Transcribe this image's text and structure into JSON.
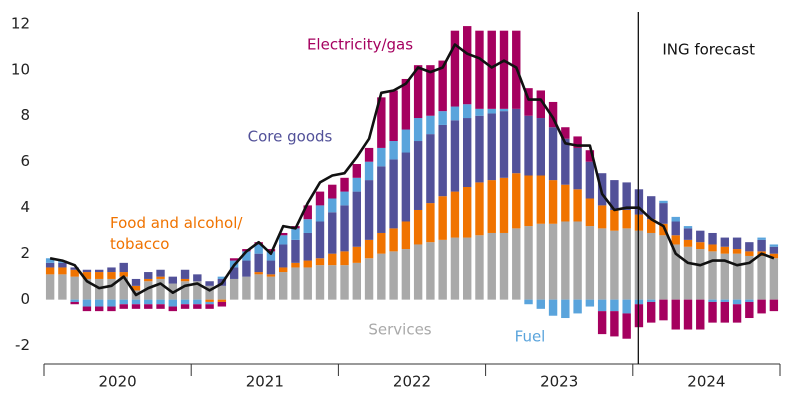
{
  "chart_data": {
    "type": "stacked-bar-line",
    "categories": [
      null,
      null,
      null,
      null,
      null,
      null,
      null,
      null,
      null,
      null,
      null,
      null,
      null,
      null,
      null,
      null,
      null,
      null,
      null,
      null,
      null,
      null,
      null,
      null,
      null,
      null,
      null,
      null,
      null,
      null,
      null,
      null,
      null,
      null,
      null,
      null,
      null,
      null,
      null,
      null,
      null,
      null,
      null,
      null,
      null,
      null,
      null,
      null,
      null,
      null,
      null,
      null,
      null,
      null,
      null,
      null,
      null,
      null,
      null,
      null
    ],
    "groups": [
      {
        "label": "2020",
        "count": 12
      },
      {
        "label": "2021",
        "count": 12
      },
      {
        "label": "2022",
        "count": 12
      },
      {
        "label": "2023",
        "count": 12
      },
      {
        "label": "2024",
        "count": 12
      }
    ],
    "series": [
      {
        "name": "Services",
        "color": "#a9a9a9",
        "values": [
          1.1,
          1.1,
          1.0,
          0.9,
          0.9,
          0.9,
          1.0,
          0.4,
          0.8,
          0.9,
          0.7,
          0.8,
          0.8,
          0.6,
          0.6,
          0.9,
          1.0,
          1.1,
          1.0,
          1.2,
          1.4,
          1.4,
          1.5,
          1.5,
          1.5,
          1.6,
          1.8,
          2.0,
          2.1,
          2.2,
          2.4,
          2.5,
          2.6,
          2.7,
          2.7,
          2.8,
          2.9,
          2.9,
          3.1,
          3.2,
          3.3,
          3.3,
          3.4,
          3.4,
          3.2,
          3.1,
          3.0,
          3.1,
          3.0,
          2.9,
          2.8,
          2.4,
          2.3,
          2.2,
          2.1,
          2.0,
          2.0,
          1.9,
          1.9,
          1.8
        ]
      },
      {
        "name": "Food and alcohol/ tobacco",
        "color": "#f07300",
        "values": [
          0.3,
          0.3,
          0.3,
          0.3,
          0.3,
          0.3,
          0.2,
          0.2,
          0.1,
          0.1,
          0.0,
          0.1,
          0.0,
          -0.1,
          -0.1,
          0.0,
          0.0,
          0.1,
          0.1,
          0.2,
          0.2,
          0.3,
          0.3,
          0.5,
          0.6,
          0.7,
          0.8,
          0.9,
          1.0,
          1.2,
          1.5,
          1.7,
          1.9,
          2.0,
          2.2,
          2.3,
          2.3,
          2.4,
          2.4,
          2.2,
          2.1,
          1.9,
          1.6,
          1.4,
          1.2,
          1.0,
          0.9,
          0.8,
          0.7,
          0.6,
          0.5,
          0.4,
          0.3,
          0.3,
          0.3,
          0.3,
          0.2,
          0.2,
          0.2,
          0.2
        ]
      },
      {
        "name": "Core goods",
        "color": "#525199",
        "values": [
          0.2,
          0.2,
          0.1,
          0.1,
          0.1,
          0.2,
          0.4,
          0.3,
          0.3,
          0.3,
          0.3,
          0.4,
          0.3,
          0.2,
          0.3,
          0.5,
          0.7,
          0.8,
          0.6,
          1.0,
          1.0,
          1.2,
          1.6,
          1.8,
          2.0,
          2.4,
          2.6,
          2.9,
          3.0,
          3.0,
          3.0,
          3.0,
          3.1,
          3.1,
          3.0,
          2.9,
          2.9,
          2.9,
          2.8,
          2.6,
          2.5,
          2.3,
          2.0,
          1.8,
          1.6,
          1.4,
          1.3,
          1.2,
          1.1,
          1.0,
          0.9,
          0.6,
          0.5,
          0.5,
          0.5,
          0.4,
          0.5,
          0.4,
          0.5,
          0.3
        ]
      },
      {
        "name": "Fuel",
        "color": "#5aa4dc",
        "values": [
          0.2,
          0.1,
          -0.1,
          -0.3,
          -0.3,
          -0.3,
          -0.2,
          -0.2,
          -0.2,
          -0.2,
          -0.3,
          -0.2,
          -0.2,
          -0.1,
          0.1,
          0.3,
          0.4,
          0.4,
          0.4,
          0.4,
          0.5,
          0.6,
          0.7,
          0.6,
          0.6,
          0.6,
          0.8,
          0.8,
          0.8,
          1.0,
          1.0,
          0.8,
          0.6,
          0.6,
          0.6,
          0.3,
          0.2,
          0.1,
          0.0,
          -0.2,
          -0.4,
          -0.7,
          -0.8,
          -0.6,
          -0.3,
          -0.5,
          -0.5,
          -0.6,
          -0.2,
          -0.1,
          0.1,
          0.2,
          0.1,
          0.0,
          -0.1,
          -0.1,
          -0.2,
          -0.1,
          0.1,
          0.1
        ]
      },
      {
        "name": "Electricity/gas",
        "color": "#a5005f",
        "values": [
          0.0,
          0.0,
          -0.1,
          -0.2,
          -0.2,
          -0.2,
          -0.2,
          -0.2,
          -0.2,
          -0.2,
          -0.2,
          -0.2,
          -0.2,
          -0.2,
          -0.2,
          0.1,
          0.1,
          0.1,
          0.1,
          0.1,
          0.1,
          0.6,
          0.6,
          0.6,
          0.6,
          0.6,
          0.6,
          2.2,
          2.2,
          2.2,
          2.3,
          2.2,
          2.2,
          3.3,
          3.4,
          3.4,
          3.4,
          3.4,
          3.4,
          1.2,
          1.2,
          1.1,
          0.5,
          0.5,
          0.5,
          -1.0,
          -1.1,
          -1.1,
          -1.0,
          -0.9,
          -0.9,
          -1.3,
          -1.3,
          -1.3,
          -0.9,
          -0.9,
          -0.8,
          -0.7,
          -0.6,
          -0.5
        ]
      }
    ],
    "line": {
      "color": "#111111",
      "values": [
        1.8,
        1.7,
        1.5,
        0.8,
        0.5,
        0.6,
        1.0,
        0.2,
        0.5,
        0.7,
        0.3,
        0.6,
        0.7,
        0.4,
        0.7,
        1.5,
        2.1,
        2.5,
        2.0,
        3.2,
        3.1,
        4.2,
        5.1,
        5.4,
        5.5,
        6.2,
        7.0,
        9.0,
        9.1,
        9.4,
        10.1,
        9.9,
        10.1,
        11.1,
        10.7,
        10.5,
        10.1,
        10.4,
        10.1,
        8.7,
        8.7,
        7.9,
        6.8,
        6.7,
        6.7,
        4.6,
        3.9,
        4.0,
        4.0,
        3.5,
        3.2,
        2.0,
        1.6,
        1.5,
        1.7,
        1.7,
        1.5,
        1.6,
        2.0,
        1.8
      ]
    },
    "annotation": "ING forecast",
    "ylim": [
      -2.8,
      12.6
    ],
    "yticks": [
      -2,
      0,
      2,
      4,
      6,
      8,
      10,
      12
    ]
  }
}
